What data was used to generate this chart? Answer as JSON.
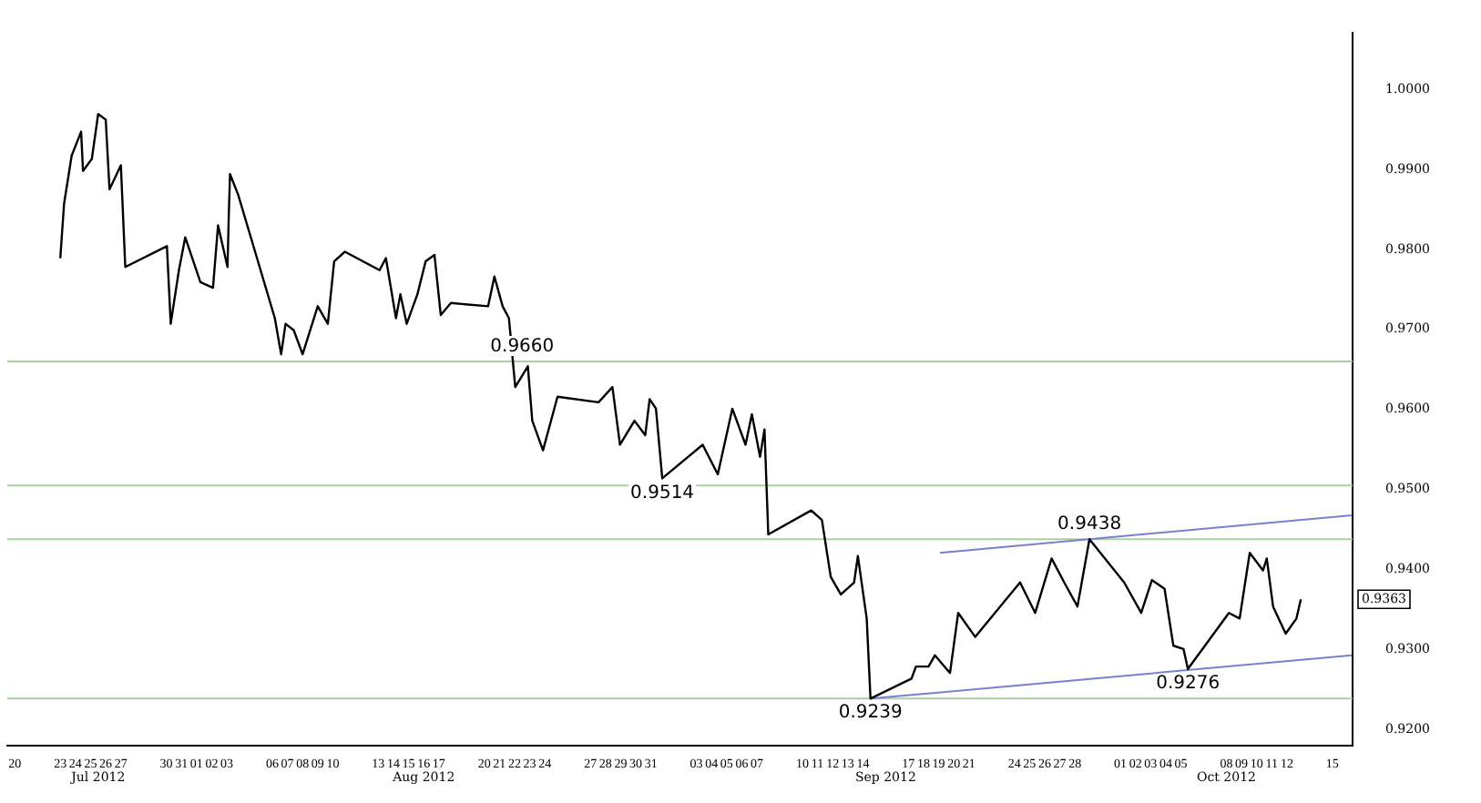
{
  "chart_data": {
    "type": "line",
    "xlim": [
      "2012-07-19T12:00",
      "2012-10-16T08:00"
    ],
    "ylim": [
      0.918,
      1.007
    ],
    "yticks": [
      {
        "value": 0.92,
        "label": "0.9200"
      },
      {
        "value": 0.93,
        "label": "0.9300"
      },
      {
        "value": 0.94,
        "label": "0.9400"
      },
      {
        "value": 0.95,
        "label": "0.9500"
      },
      {
        "value": 0.96,
        "label": "0.9600"
      },
      {
        "value": 0.97,
        "label": "0.9700"
      },
      {
        "value": 0.98,
        "label": "0.9800"
      },
      {
        "value": 0.99,
        "label": "0.9900"
      },
      {
        "value": 1.0,
        "label": "1.0000"
      }
    ],
    "xticks": [
      {
        "value": "2012-07-20",
        "label": "20"
      },
      {
        "value": "2012-07-23",
        "label": "23"
      },
      {
        "value": "2012-07-24",
        "label": "24"
      },
      {
        "value": "2012-07-25",
        "label": "25"
      },
      {
        "value": "2012-07-26",
        "label": "26"
      },
      {
        "value": "2012-07-27",
        "label": "27"
      },
      {
        "value": "2012-07-30",
        "label": "30"
      },
      {
        "value": "2012-07-31",
        "label": "31"
      },
      {
        "value": "2012-08-01",
        "label": "01"
      },
      {
        "value": "2012-08-02",
        "label": "02"
      },
      {
        "value": "2012-08-03",
        "label": "03"
      },
      {
        "value": "2012-08-06",
        "label": "06"
      },
      {
        "value": "2012-08-07",
        "label": "07"
      },
      {
        "value": "2012-08-08",
        "label": "08"
      },
      {
        "value": "2012-08-09",
        "label": "09"
      },
      {
        "value": "2012-08-10",
        "label": "10"
      },
      {
        "value": "2012-08-13",
        "label": "13"
      },
      {
        "value": "2012-08-14",
        "label": "14"
      },
      {
        "value": "2012-08-15",
        "label": "15"
      },
      {
        "value": "2012-08-16",
        "label": "16"
      },
      {
        "value": "2012-08-17",
        "label": "17"
      },
      {
        "value": "2012-08-20",
        "label": "20"
      },
      {
        "value": "2012-08-21",
        "label": "21"
      },
      {
        "value": "2012-08-22",
        "label": "22"
      },
      {
        "value": "2012-08-23",
        "label": "23"
      },
      {
        "value": "2012-08-24",
        "label": "24"
      },
      {
        "value": "2012-08-27",
        "label": "27"
      },
      {
        "value": "2012-08-28",
        "label": "28"
      },
      {
        "value": "2012-08-29",
        "label": "29"
      },
      {
        "value": "2012-08-30",
        "label": "30"
      },
      {
        "value": "2012-08-31",
        "label": "31"
      },
      {
        "value": "2012-09-03",
        "label": "03"
      },
      {
        "value": "2012-09-04",
        "label": "04"
      },
      {
        "value": "2012-09-05",
        "label": "05"
      },
      {
        "value": "2012-09-06",
        "label": "06"
      },
      {
        "value": "2012-09-07",
        "label": "07"
      },
      {
        "value": "2012-09-10",
        "label": "10"
      },
      {
        "value": "2012-09-11",
        "label": "11"
      },
      {
        "value": "2012-09-12",
        "label": "12"
      },
      {
        "value": "2012-09-13",
        "label": "13"
      },
      {
        "value": "2012-09-14",
        "label": "14"
      },
      {
        "value": "2012-09-17",
        "label": "17"
      },
      {
        "value": "2012-09-18",
        "label": "18"
      },
      {
        "value": "2012-09-19",
        "label": "19"
      },
      {
        "value": "2012-09-20",
        "label": "20"
      },
      {
        "value": "2012-09-21",
        "label": "21"
      },
      {
        "value": "2012-09-24",
        "label": "24"
      },
      {
        "value": "2012-09-25",
        "label": "25"
      },
      {
        "value": "2012-09-26",
        "label": "26"
      },
      {
        "value": "2012-09-27",
        "label": "27"
      },
      {
        "value": "2012-09-28",
        "label": "28"
      },
      {
        "value": "2012-10-01",
        "label": "01"
      },
      {
        "value": "2012-10-02",
        "label": "02"
      },
      {
        "value": "2012-10-03",
        "label": "03"
      },
      {
        "value": "2012-10-04",
        "label": "04"
      },
      {
        "value": "2012-10-05",
        "label": "05"
      },
      {
        "value": "2012-10-08",
        "label": "08"
      },
      {
        "value": "2012-10-09",
        "label": "09"
      },
      {
        "value": "2012-10-10",
        "label": "10"
      },
      {
        "value": "2012-10-11",
        "label": "11"
      },
      {
        "value": "2012-10-12",
        "label": "12"
      },
      {
        "value": "2012-10-15",
        "label": "15"
      }
    ],
    "marker": "none",
    "line_style": "solid",
    "series": [
      {
        "type": "line",
        "color": "#000000",
        "x": [
          "2012-07-23T00:00",
          "2012-07-23T06:00",
          "2012-07-23T18:00",
          "2012-07-24T09:00",
          "2012-07-24T12:00",
          "2012-07-25T02:00",
          "2012-07-25T12:00",
          "2012-07-26T00:00",
          "2012-07-26T06:00",
          "2012-07-27T00:00",
          "2012-07-27T07:00",
          "2012-07-30T01:00",
          "2012-07-30T07:00",
          "2012-07-30T20:00",
          "2012-07-31T06:00",
          "2012-08-01T06:00",
          "2012-08-02T02:00",
          "2012-08-02T10:00",
          "2012-08-03T01:00",
          "2012-08-03T03:00",
          "2012-08-03T05:00",
          "2012-08-03T18:00",
          "2012-08-06T04:00",
          "2012-08-06T14:00",
          "2012-08-06T21:00",
          "2012-08-07T10:00",
          "2012-08-08T00:00",
          "2012-08-09T00:00",
          "2012-08-09T16:00",
          "2012-08-10T02:00",
          "2012-08-10T19:00",
          "2012-08-13T02:00",
          "2012-08-13T12:00",
          "2012-08-14T04:00",
          "2012-08-14T11:00",
          "2012-08-14T21:00",
          "2012-08-15T14:00",
          "2012-08-16T03:00",
          "2012-08-16T17:00",
          "2012-08-17T03:00",
          "2012-08-17T19:00",
          "2012-08-20T06:00",
          "2012-08-20T16:00",
          "2012-08-21T05:00",
          "2012-08-21T15:00",
          "2012-08-22T01:00",
          "2012-08-22T21:00",
          "2012-08-23T04:00",
          "2012-08-23T21:00",
          "2012-08-24T20:00",
          "2012-08-27T13:00",
          "2012-08-28T11:00",
          "2012-08-28T23:00",
          "2012-08-29T22:00",
          "2012-08-30T15:00",
          "2012-08-30T22:00",
          "2012-08-31T08:00",
          "2012-08-31T18:00",
          "2012-09-03T10:00",
          "2012-09-04T10:00",
          "2012-09-05T09:00",
          "2012-09-06T06:00",
          "2012-09-06T16:00",
          "2012-09-07T05:00",
          "2012-09-07T12:00",
          "2012-09-07T18:00",
          "2012-09-10T14:00",
          "2012-09-11T07:00",
          "2012-09-11T21:00",
          "2012-09-12T13:00",
          "2012-09-13T10:00",
          "2012-09-13T16:00",
          "2012-09-14T06:00",
          "2012-09-14T12:00",
          "2012-09-17T05:00",
          "2012-09-17T12:00",
          "2012-09-18T08:00",
          "2012-09-18T18:00",
          "2012-09-19T18:00",
          "2012-09-20T07:00",
          "2012-09-21T10:00",
          "2012-09-24T09:00",
          "2012-09-25T09:00",
          "2012-09-26T11:00",
          "2012-09-27T07:00",
          "2012-09-28T04:00",
          "2012-09-28T23:00",
          "2012-10-01T06:00",
          "2012-10-02T09:00",
          "2012-10-03T02:00",
          "2012-10-03T22:00",
          "2012-10-04T12:00",
          "2012-10-05T04:00",
          "2012-10-05T11:00",
          "2012-10-08T04:00",
          "2012-10-08T21:00",
          "2012-10-09T13:00",
          "2012-10-10T10:00",
          "2012-10-10T16:00",
          "2012-10-11T02:00",
          "2012-10-11T22:00",
          "2012-10-12T15:00",
          "2012-10-12T22:00"
        ],
        "values": [
          0.9789,
          0.9857,
          0.9917,
          0.9947,
          0.9898,
          0.9913,
          0.9969,
          0.9962,
          0.9875,
          0.9905,
          0.9778,
          0.9804,
          0.9707,
          0.9774,
          0.9815,
          0.9759,
          0.9752,
          0.983,
          0.9778,
          0.9842,
          0.9894,
          0.9868,
          0.9714,
          0.9669,
          0.9707,
          0.9699,
          0.9669,
          0.9729,
          0.9707,
          0.9785,
          0.9797,
          0.9774,
          0.9789,
          0.9714,
          0.9744,
          0.9707,
          0.9744,
          0.9785,
          0.9793,
          0.9718,
          0.9733,
          0.9729,
          0.9766,
          0.9729,
          0.9714,
          0.9628,
          0.9654,
          0.9586,
          0.9549,
          0.9616,
          0.9609,
          0.9628,
          0.9556,
          0.9586,
          0.9568,
          0.9613,
          0.9601,
          0.9514,
          0.9556,
          0.9519,
          0.9601,
          0.9556,
          0.9594,
          0.9541,
          0.9575,
          0.9444,
          0.9474,
          0.9462,
          0.9391,
          0.9369,
          0.9384,
          0.9417,
          0.9339,
          0.9239,
          0.9264,
          0.9279,
          0.9279,
          0.9293,
          0.9271,
          0.9346,
          0.9316,
          0.9384,
          0.9346,
          0.9414,
          0.9384,
          0.9354,
          0.9438,
          0.9384,
          0.9346,
          0.9387,
          0.9376,
          0.9305,
          0.9301,
          0.9276,
          0.9346,
          0.9339,
          0.9421,
          0.9399,
          0.9414,
          0.9354,
          0.932,
          0.9339,
          0.9363
        ]
      },
      {
        "type": "line",
        "color": "#7b7fd0",
        "x": [
          "2012-09-14T12:00",
          "2012-10-16T07:00"
        ],
        "values": [
          0.9239,
          0.9293
        ]
      },
      {
        "type": "line",
        "color": "#7b7fd0",
        "x": [
          "2012-09-19T02:00",
          "2012-10-16T07:00"
        ],
        "values": [
          0.9421,
          0.9468
        ]
      }
    ],
    "ref_lines": [
      {
        "axis": "y",
        "value": 0.966,
        "color": "#a8d0a0"
      },
      {
        "axis": "y",
        "value": 0.9505,
        "color": "#a8d0a0"
      },
      {
        "axis": "y",
        "value": 0.9438,
        "color": "#a8d0a0"
      },
      {
        "axis": "y",
        "value": 0.9239,
        "color": "#a8d0a0"
      }
    ],
    "annotations": [
      {
        "text": "0.9660",
        "x": "2012-08-22T12:00",
        "y": 0.966
      },
      {
        "text": "0.9514",
        "x": "2012-08-31T18:00",
        "y": 0.9514
      },
      {
        "text": "0.9239",
        "x": "2012-09-14T12:00",
        "y": 0.9239
      },
      {
        "text": "0.9438",
        "x": "2012-09-28T23:00",
        "y": 0.9438
      },
      {
        "text": "0.9276",
        "x": "2012-10-05T11:00",
        "y": 0.9276
      },
      {
        "text": "0.9363",
        "y": 0.9363
      },
      "Jul 2012",
      "Aug 2012",
      "Sep 2012",
      "Oct 2012"
    ]
  }
}
